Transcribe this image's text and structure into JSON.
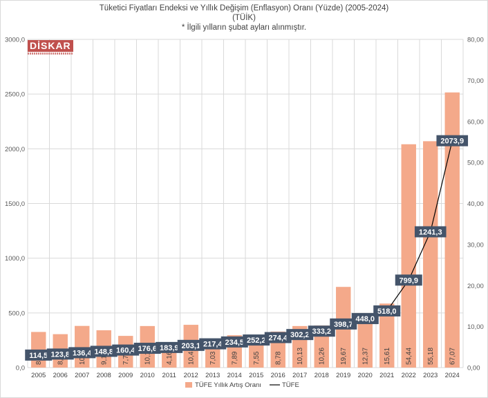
{
  "chart_data": {
    "type": "bar",
    "title": "Tüketici Fiyatları Endeksi ve Yıllık Değişim (Enflasyon) Oranı (Yüzde) (2005-2024)",
    "subtitle": "(TÜİK)",
    "note": "* İlgili yılların şubat ayları alınmıştır.",
    "categories": [
      "2005",
      "2006",
      "2007",
      "2008",
      "2009",
      "2010",
      "2011",
      "2012",
      "2013",
      "2014",
      "2015",
      "2016",
      "2017",
      "2018",
      "2019",
      "2020",
      "2021",
      "2022",
      "2023",
      "2024"
    ],
    "series": [
      {
        "name": "TÜFE Yıllık Artış Oranı",
        "type": "bar",
        "axis": "right",
        "color": "#f4a98a",
        "values": [
          8.69,
          8.15,
          10.16,
          9.1,
          7.73,
          10.13,
          4.16,
          10.43,
          7.03,
          7.89,
          7.55,
          8.78,
          10.13,
          10.26,
          19.67,
          12.37,
          15.61,
          54.44,
          55.18,
          67.07
        ],
        "labels": [
          "8,69",
          "8,15",
          "10,16",
          "9,10",
          "7,73",
          "10,13",
          "4,16",
          "10,43",
          "7,03",
          "7,89",
          "7,55",
          "8,78",
          "10,13",
          "10,26",
          "19,67",
          "12,37",
          "15,61",
          "54,44",
          "55,18",
          "67,07"
        ]
      },
      {
        "name": "TÜFE",
        "type": "line",
        "axis": "left",
        "color": "#000000",
        "values": [
          114.5,
          123.8,
          136.4,
          148.8,
          160.4,
          176.6,
          183.9,
          203.1,
          217.4,
          234.5,
          252.2,
          274.4,
          302.2,
          333.2,
          398.7,
          448.0,
          518.0,
          799.9,
          1241.3,
          2073.9
        ],
        "labels": [
          "114,5",
          "123,8",
          "136,4",
          "148,8",
          "160,4",
          "176,6",
          "183,9",
          "203,1",
          "217,4",
          "234,5",
          "252,2",
          "274,4",
          "302,2",
          "333,2",
          "398,7",
          "448,0",
          "518,0",
          "799,9",
          "1241,3",
          "2073,9"
        ]
      }
    ],
    "y_left": {
      "ylim": [
        0,
        3000
      ],
      "ticks": [
        0,
        500,
        1000,
        1500,
        2000,
        2500,
        3000
      ],
      "tick_labels": [
        "0,0",
        "500,0",
        "1000,0",
        "1500,0",
        "2000,0",
        "2500,0",
        "3000,0"
      ]
    },
    "y_right": {
      "ylim": [
        0,
        80
      ],
      "ticks": [
        0,
        10,
        20,
        30,
        40,
        50,
        60,
        70,
        80
      ],
      "tick_labels": [
        "0,00",
        "10,00",
        "20,00",
        "30,00",
        "40,00",
        "50,00",
        "60,00",
        "70,00",
        "80,00"
      ]
    },
    "grid": true,
    "legend": "bottom",
    "label_box_color": "#44546a",
    "gridline_color": "#d9d9d9"
  },
  "logo": {
    "text": "DİSKAR"
  }
}
